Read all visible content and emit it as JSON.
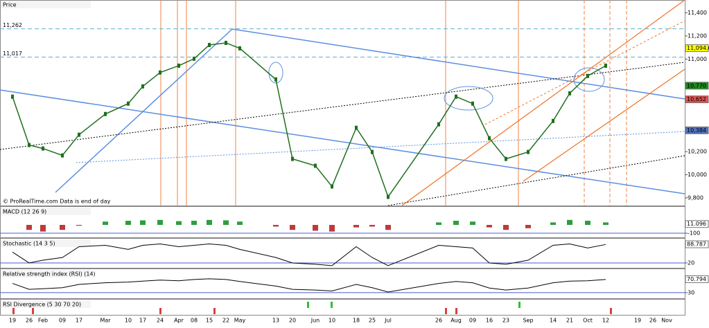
{
  "chart_data": [
    {
      "type": "line",
      "title": "Price",
      "credit": "© ProRealTime.com Data is end of day",
      "x": [
        "19",
        "26",
        "Feb",
        "09",
        "17",
        "Mar",
        "10",
        "17",
        "24",
        "Apr",
        "08",
        "15",
        "22",
        "May",
        "13",
        "20",
        "Jun",
        "10",
        "18",
        "25",
        "Jul",
        "26",
        "Aug",
        "09",
        "16",
        "23",
        "Sep",
        "14",
        "21",
        "Oct",
        "12",
        "19",
        "26",
        "Nov"
      ],
      "series": [
        {
          "name": "Close",
          "color": "#1f6f1f",
          "values": [
            10675,
            10257,
            10227,
            10167,
            10346,
            10525,
            10615,
            10764,
            10884,
            10943,
            11003,
            11122,
            11140,
            11093,
            10824,
            10137,
            10078,
            9899,
            10406,
            10197,
            9809,
            10436,
            10675,
            10615,
            10316,
            10137,
            10197,
            10465,
            10704,
            10854,
            10943,
            null,
            null,
            null
          ]
        }
      ],
      "ylim": [
        9734,
        11427
      ],
      "yticks": [
        {
          "value": 9800,
          "label": "9,800"
        },
        {
          "value": 10000,
          "label": "10,000"
        },
        {
          "value": 10200,
          "label": "10,200"
        },
        {
          "value": 11000,
          "label": "11,000"
        },
        {
          "value": 11200,
          "label": "11,200"
        },
        {
          "value": 11400,
          "label": "11,400"
        }
      ],
      "levels": [
        {
          "value": 11262,
          "label": "11,262"
        },
        {
          "value": 11017,
          "label": "11,017"
        }
      ],
      "annotations": [
        {
          "value": 11094.6,
          "label": "11,094.6",
          "color": "#ffff00"
        },
        {
          "value": 10770,
          "label": "10,770",
          "color": "#1a8a1a"
        },
        {
          "value": 10652,
          "label": "10,652",
          "color": "#e05050"
        },
        {
          "value": 10384,
          "label": "10,384",
          "color": "#5070c0"
        }
      ]
    },
    {
      "type": "histogram-panel",
      "title": "MACD (12 26 9)",
      "color": "#c0393b",
      "color2": "#2e9e3e",
      "values": [
        0,
        -60,
        -80,
        -60,
        -10,
        40,
        50,
        55,
        60,
        45,
        50,
        60,
        55,
        40,
        -20,
        -60,
        -70,
        -80,
        -30,
        -20,
        -60,
        30,
        50,
        40,
        -30,
        -60,
        -40,
        30,
        60,
        50,
        30,
        null,
        null,
        null
      ],
      "ylim": [
        -150,
        217
      ],
      "yticks": [
        -100
      ],
      "annotations": [
        11.096
      ]
    },
    {
      "type": "line-panel",
      "title": "Stochastic (14 3 5)",
      "color": "#000000",
      "values": [
        60,
        20,
        30,
        40,
        80,
        85,
        70,
        85,
        90,
        80,
        85,
        90,
        85,
        70,
        40,
        20,
        15,
        10,
        80,
        40,
        10,
        85,
        80,
        75,
        20,
        15,
        30,
        85,
        90,
        75,
        88,
        null,
        null,
        null
      ],
      "ylim": [
        0,
        100
      ],
      "yticks": [
        20
      ],
      "annotations": [
        88.787
      ]
    },
    {
      "type": "line-panel",
      "title": "Relative strength index (RSI) (14)",
      "color": "#000000",
      "values": [
        58,
        40,
        42,
        45,
        55,
        60,
        62,
        65,
        68,
        66,
        70,
        72,
        70,
        64,
        50,
        40,
        38,
        35,
        55,
        45,
        32,
        58,
        64,
        60,
        44,
        38,
        44,
        60,
        65,
        66,
        70,
        null,
        null,
        null
      ],
      "ylim": [
        13,
        97
      ],
      "yticks": [
        30
      ],
      "annotations": [
        70.794
      ]
    },
    {
      "type": "signal-panel",
      "title": "RSI Divergence (5 30 70 20)"
    }
  ]
}
